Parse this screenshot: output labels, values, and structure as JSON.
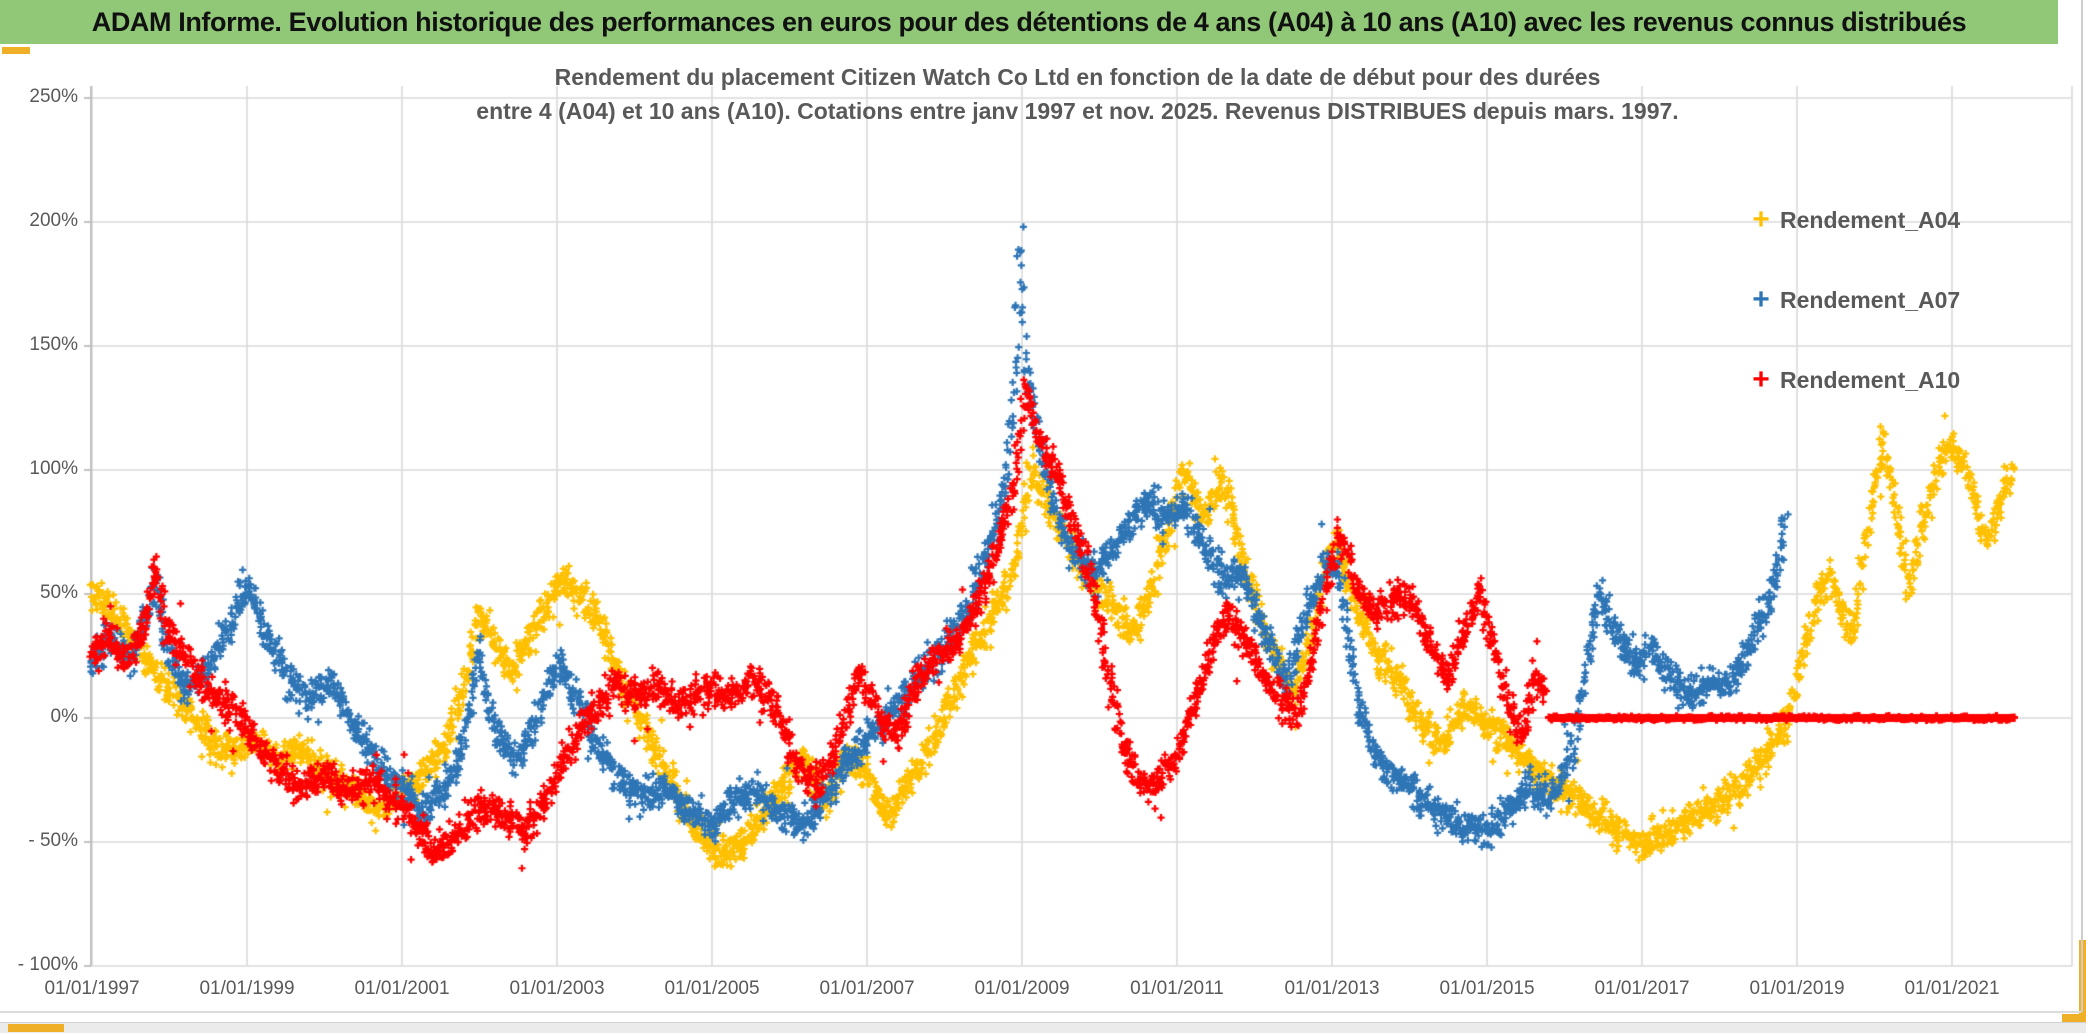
{
  "header": {
    "title": "ADAM Informe. Evolution historique des performances en euros pour des détentions de 4 ans (A04) à 10 ans (A10) avec les revenus connus distribués"
  },
  "chart": {
    "title_line1": "Rendement du placement Citizen Watch Co Ltd en fonction de la date de début pour des durées",
    "title_line2": "entre 4 (A04) et 10 ans (A10). Cotations entre janv 1997 et nov. 2025. Revenus DISTRIBUES depuis mars. 1997.",
    "text_color": "#595959",
    "gridline_color": "#DADADA",
    "axis_color": "#BDBDBD",
    "header_green": "#90C878",
    "accent_gold": "#EFAF26"
  },
  "chart_data": {
    "type": "scatter",
    "title": "Rendement du placement Citizen Watch Co Ltd en fonction de la date de début pour des durées entre 4 (A04) et 10 ans (A10). Cotations entre janv 1997 et nov. 2025. Revenus DISTRIBUES depuis mars. 1997.",
    "marker": "plus",
    "grid": true,
    "legend_position": "right",
    "y_axis": {
      "unit": "%",
      "min": -100,
      "max": 250,
      "ticks": [
        {
          "label": "250%",
          "value": 250
        },
        {
          "label": "200%",
          "value": 200
        },
        {
          "label": "150%",
          "value": 150
        },
        {
          "label": "100%",
          "value": 100
        },
        {
          "label": "50%",
          "value": 50
        },
        {
          "label": "0%",
          "value": 0
        },
        {
          "label": "- 50%",
          "value": -50
        },
        {
          "label": "- 100%",
          "value": -100
        }
      ]
    },
    "x_axis": {
      "start_year": 1997,
      "tick_interval_years": 2,
      "labels": [
        "01/01/1997",
        "01/01/1999",
        "01/01/2001",
        "01/01/2003",
        "01/01/2005",
        "01/01/2007",
        "01/01/2009",
        "01/01/2011",
        "01/01/2013",
        "01/01/2015",
        "01/01/2017",
        "01/01/2019",
        "01/01/2021"
      ]
    },
    "series": [
      {
        "name": "Rendement_A04",
        "color": "#FFC000",
        "points": [
          [
            1997.0,
            52
          ],
          [
            1997.3,
            42
          ],
          [
            1997.6,
            30
          ],
          [
            1997.9,
            15
          ],
          [
            1998.2,
            5
          ],
          [
            1998.5,
            -8
          ],
          [
            1998.8,
            -15
          ],
          [
            1999.1,
            -8
          ],
          [
            1999.4,
            -18
          ],
          [
            1999.7,
            -12
          ],
          [
            2000.0,
            -22
          ],
          [
            2000.35,
            -30
          ],
          [
            2000.7,
            -36
          ],
          [
            2001.0,
            -30
          ],
          [
            2001.3,
            -22
          ],
          [
            2001.6,
            -8
          ],
          [
            2001.85,
            20
          ],
          [
            2002.0,
            42
          ],
          [
            2002.2,
            30
          ],
          [
            2002.4,
            18
          ],
          [
            2002.7,
            35
          ],
          [
            2003.05,
            57
          ],
          [
            2003.3,
            48
          ],
          [
            2003.55,
            40
          ],
          [
            2003.9,
            10
          ],
          [
            2004.2,
            -10
          ],
          [
            2004.5,
            -28
          ],
          [
            2004.8,
            -45
          ],
          [
            2005.1,
            -55
          ],
          [
            2005.4,
            -50
          ],
          [
            2005.7,
            -38
          ],
          [
            2005.95,
            -26
          ],
          [
            2006.15,
            -14
          ],
          [
            2006.45,
            -34
          ],
          [
            2006.75,
            -16
          ],
          [
            2007.0,
            -24
          ],
          [
            2007.3,
            -40
          ],
          [
            2007.6,
            -22
          ],
          [
            2007.9,
            -6
          ],
          [
            2008.1,
            8
          ],
          [
            2008.35,
            25
          ],
          [
            2008.6,
            40
          ],
          [
            2008.85,
            56
          ],
          [
            2009.0,
            80
          ],
          [
            2009.12,
            100
          ],
          [
            2009.35,
            84
          ],
          [
            2009.6,
            70
          ],
          [
            2009.9,
            55
          ],
          [
            2010.15,
            45
          ],
          [
            2010.45,
            34
          ],
          [
            2010.7,
            56
          ],
          [
            2010.9,
            80
          ],
          [
            2011.1,
            100
          ],
          [
            2011.35,
            80
          ],
          [
            2011.6,
            97
          ],
          [
            2011.9,
            58
          ],
          [
            2012.2,
            30
          ],
          [
            2012.5,
            10
          ],
          [
            2012.7,
            30
          ],
          [
            2012.9,
            58
          ],
          [
            2013.05,
            72
          ],
          [
            2013.3,
            45
          ],
          [
            2013.6,
            25
          ],
          [
            2013.9,
            14
          ],
          [
            2014.2,
            -5
          ],
          [
            2014.45,
            -10
          ],
          [
            2014.7,
            6
          ],
          [
            2015.0,
            -2
          ],
          [
            2015.3,
            -11
          ],
          [
            2015.6,
            -20
          ],
          [
            2015.95,
            -28
          ],
          [
            2016.3,
            -36
          ],
          [
            2016.7,
            -46
          ],
          [
            2017.0,
            -51
          ],
          [
            2017.3,
            -46
          ],
          [
            2017.6,
            -42
          ],
          [
            2017.95,
            -35
          ],
          [
            2018.3,
            -27
          ],
          [
            2018.6,
            -15
          ],
          [
            2018.9,
            0
          ],
          [
            2019.1,
            28
          ],
          [
            2019.3,
            50
          ],
          [
            2019.45,
            58
          ],
          [
            2019.6,
            40
          ],
          [
            2019.72,
            32
          ],
          [
            2019.85,
            62
          ],
          [
            2020.0,
            95
          ],
          [
            2020.1,
            113
          ],
          [
            2020.25,
            88
          ],
          [
            2020.45,
            52
          ],
          [
            2020.6,
            75
          ],
          [
            2020.78,
            95
          ],
          [
            2020.95,
            110
          ],
          [
            2021.15,
            103
          ],
          [
            2021.3,
            88
          ],
          [
            2021.45,
            70
          ],
          [
            2021.6,
            85
          ],
          [
            2021.78,
            100
          ]
        ]
      },
      {
        "name": "Rendement_A07",
        "color": "#2E75B6",
        "points": [
          [
            1997.0,
            22
          ],
          [
            1997.2,
            32
          ],
          [
            1997.5,
            25
          ],
          [
            1997.75,
            45
          ],
          [
            1997.82,
            58
          ],
          [
            1997.95,
            30
          ],
          [
            1998.2,
            12
          ],
          [
            1998.5,
            20
          ],
          [
            1998.75,
            35
          ],
          [
            1999.0,
            55
          ],
          [
            1999.2,
            38
          ],
          [
            1999.5,
            18
          ],
          [
            1999.8,
            8
          ],
          [
            2000.1,
            16
          ],
          [
            2000.4,
            -5
          ],
          [
            2000.7,
            -18
          ],
          [
            2001.0,
            -28
          ],
          [
            2001.3,
            -38
          ],
          [
            2001.6,
            -25
          ],
          [
            2001.8,
            -10
          ],
          [
            2001.98,
            25
          ],
          [
            2002.2,
            -5
          ],
          [
            2002.5,
            -18
          ],
          [
            2002.75,
            0
          ],
          [
            2003.0,
            22
          ],
          [
            2003.25,
            8
          ],
          [
            2003.5,
            -10
          ],
          [
            2003.8,
            -25
          ],
          [
            2004.1,
            -32
          ],
          [
            2004.4,
            -28
          ],
          [
            2004.7,
            -38
          ],
          [
            2005.0,
            -44
          ],
          [
            2005.3,
            -32
          ],
          [
            2005.6,
            -30
          ],
          [
            2005.9,
            -40
          ],
          [
            2006.2,
            -42
          ],
          [
            2006.5,
            -30
          ],
          [
            2006.8,
            -15
          ],
          [
            2007.1,
            -5
          ],
          [
            2007.4,
            5
          ],
          [
            2007.7,
            18
          ],
          [
            2008.0,
            28
          ],
          [
            2008.3,
            45
          ],
          [
            2008.55,
            65
          ],
          [
            2008.8,
            95
          ],
          [
            2008.93,
            150
          ],
          [
            2008.97,
            200
          ],
          [
            2009.05,
            140
          ],
          [
            2009.15,
            122
          ],
          [
            2009.3,
            100
          ],
          [
            2009.5,
            78
          ],
          [
            2009.7,
            65
          ],
          [
            2009.9,
            58
          ],
          [
            2010.1,
            65
          ],
          [
            2010.35,
            75
          ],
          [
            2010.6,
            90
          ],
          [
            2010.85,
            80
          ],
          [
            2011.1,
            85
          ],
          [
            2011.35,
            70
          ],
          [
            2011.6,
            55
          ],
          [
            2011.85,
            58
          ],
          [
            2012.1,
            38
          ],
          [
            2012.4,
            12
          ],
          [
            2012.65,
            42
          ],
          [
            2012.9,
            60
          ],
          [
            2013.05,
            64
          ],
          [
            2013.2,
            35
          ],
          [
            2013.35,
            5
          ],
          [
            2013.6,
            -18
          ],
          [
            2013.9,
            -25
          ],
          [
            2014.2,
            -33
          ],
          [
            2014.5,
            -40
          ],
          [
            2014.8,
            -45
          ],
          [
            2015.05,
            -46
          ],
          [
            2015.3,
            -35
          ],
          [
            2015.6,
            -28
          ],
          [
            2015.85,
            -32
          ],
          [
            2016.1,
            -12
          ],
          [
            2016.3,
            25
          ],
          [
            2016.45,
            52
          ],
          [
            2016.65,
            35
          ],
          [
            2016.9,
            20
          ],
          [
            2017.15,
            28
          ],
          [
            2017.4,
            15
          ],
          [
            2017.6,
            8
          ],
          [
            2017.85,
            15
          ],
          [
            2018.1,
            12
          ],
          [
            2018.35,
            25
          ],
          [
            2018.6,
            45
          ],
          [
            2018.75,
            62
          ],
          [
            2018.85,
            80
          ]
        ]
      },
      {
        "name": "Rendement_A10",
        "color": "#FF0000",
        "points": [
          [
            1997.0,
            25
          ],
          [
            1997.2,
            33
          ],
          [
            1997.45,
            22
          ],
          [
            1997.7,
            40
          ],
          [
            1997.82,
            62
          ],
          [
            1997.95,
            38
          ],
          [
            1998.2,
            25
          ],
          [
            1998.5,
            10
          ],
          [
            1998.8,
            5
          ],
          [
            1999.1,
            -8
          ],
          [
            1999.4,
            -20
          ],
          [
            1999.7,
            -28
          ],
          [
            2000.0,
            -22
          ],
          [
            2000.3,
            -30
          ],
          [
            2000.6,
            -25
          ],
          [
            2000.9,
            -32
          ],
          [
            2001.2,
            -45
          ],
          [
            2001.4,
            -56
          ],
          [
            2001.7,
            -48
          ],
          [
            2002.0,
            -35
          ],
          [
            2002.3,
            -40
          ],
          [
            2002.6,
            -45
          ],
          [
            2002.9,
            -30
          ],
          [
            2003.1,
            -15
          ],
          [
            2003.3,
            -5
          ],
          [
            2003.55,
            5
          ],
          [
            2003.75,
            15
          ],
          [
            2004.0,
            8
          ],
          [
            2004.3,
            12
          ],
          [
            2004.6,
            5
          ],
          [
            2004.9,
            12
          ],
          [
            2005.2,
            8
          ],
          [
            2005.5,
            15
          ],
          [
            2005.8,
            5
          ],
          [
            2006.1,
            -18
          ],
          [
            2006.35,
            -27
          ],
          [
            2006.6,
            -12
          ],
          [
            2006.9,
            18
          ],
          [
            2007.15,
            0
          ],
          [
            2007.4,
            -5
          ],
          [
            2007.65,
            15
          ],
          [
            2007.9,
            25
          ],
          [
            2008.15,
            30
          ],
          [
            2008.4,
            45
          ],
          [
            2008.65,
            65
          ],
          [
            2008.9,
            95
          ],
          [
            2009.05,
            132
          ],
          [
            2009.25,
            110
          ],
          [
            2009.5,
            95
          ],
          [
            2009.7,
            75
          ],
          [
            2009.9,
            55
          ],
          [
            2010.1,
            20
          ],
          [
            2010.3,
            -10
          ],
          [
            2010.55,
            -28
          ],
          [
            2010.8,
            -25
          ],
          [
            2011.0,
            -15
          ],
          [
            2011.2,
            5
          ],
          [
            2011.45,
            28
          ],
          [
            2011.65,
            42
          ],
          [
            2011.9,
            30
          ],
          [
            2012.1,
            18
          ],
          [
            2012.35,
            8
          ],
          [
            2012.55,
            0
          ],
          [
            2012.75,
            25
          ],
          [
            2012.95,
            55
          ],
          [
            2013.1,
            76
          ],
          [
            2013.3,
            55
          ],
          [
            2013.55,
            42
          ],
          [
            2013.8,
            48
          ],
          [
            2014.0,
            50
          ],
          [
            2014.25,
            30
          ],
          [
            2014.5,
            15
          ],
          [
            2014.7,
            35
          ],
          [
            2014.9,
            50
          ],
          [
            2015.1,
            28
          ],
          [
            2015.3,
            5
          ],
          [
            2015.45,
            -8
          ],
          [
            2015.6,
            16
          ],
          [
            2015.75,
            12
          ]
        ]
      }
    ],
    "zero_line": {
      "series": "Rendement_A10",
      "value": 0,
      "from_year": 2015.8,
      "to_year": 2021.82,
      "color": "#FF0000"
    },
    "legend": [
      "Rendement_A04",
      "Rendement_A07",
      "Rendement_A10"
    ]
  }
}
